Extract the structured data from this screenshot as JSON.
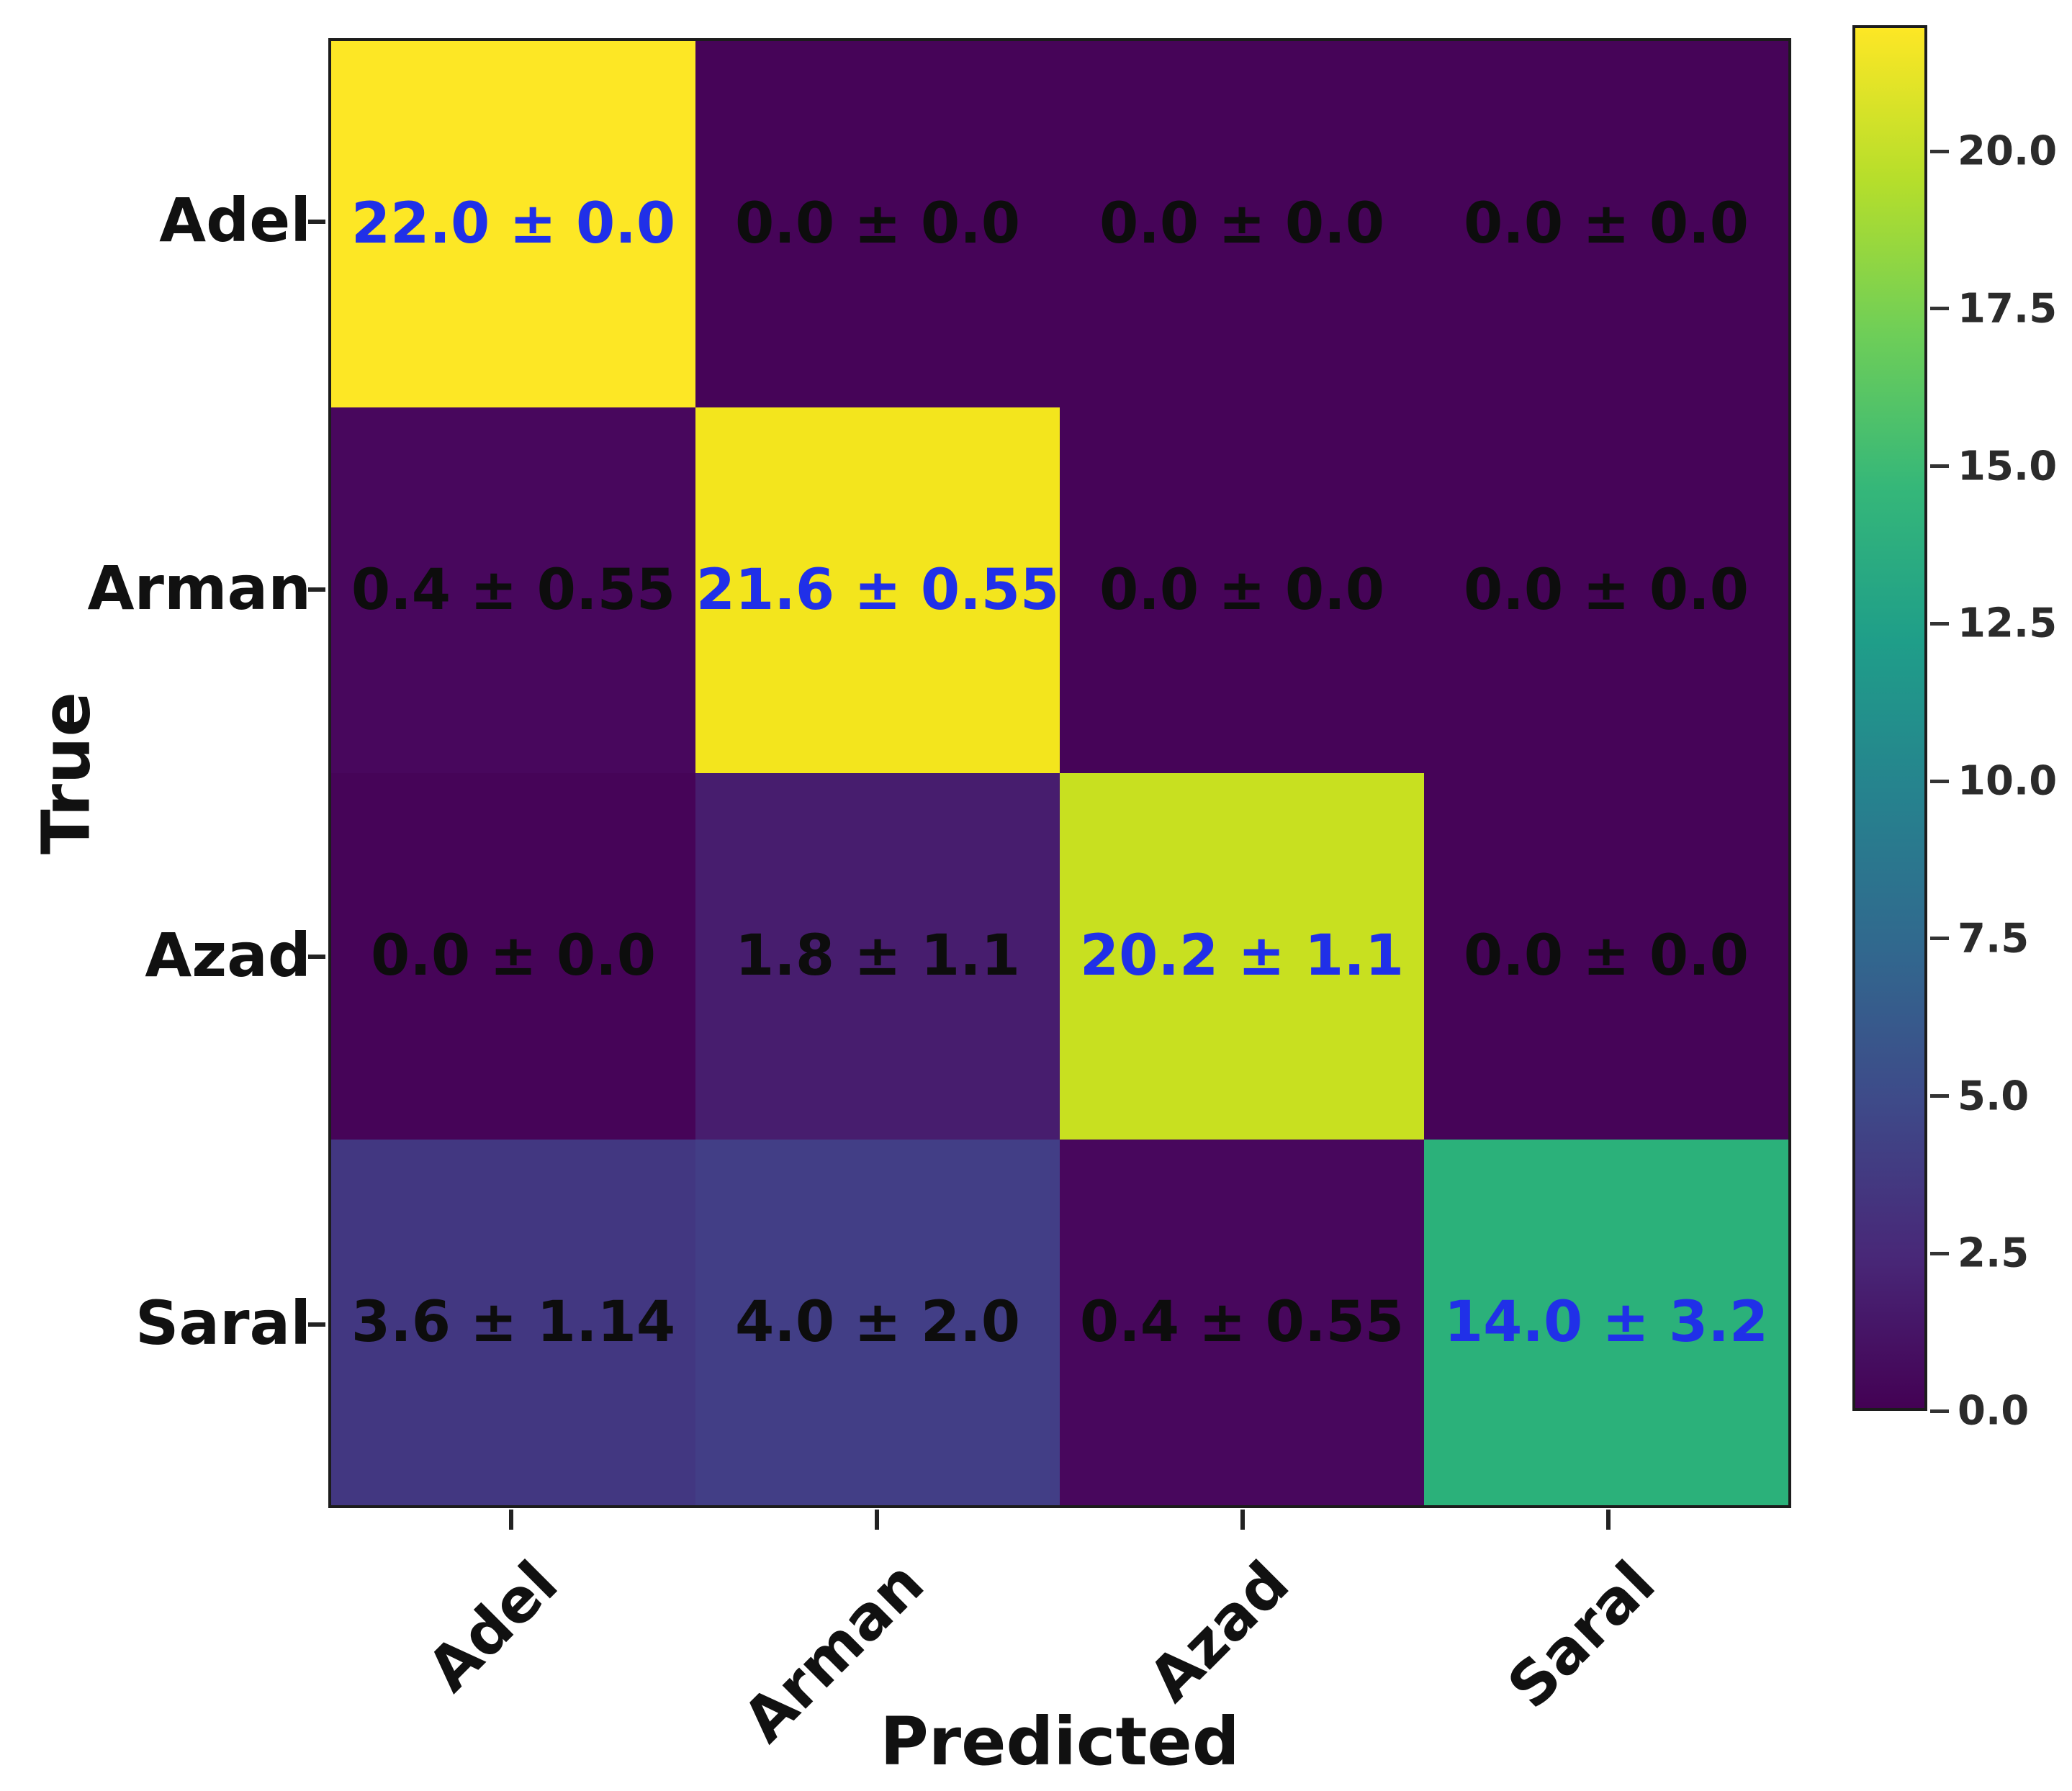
{
  "figure_type": "confusion-matrix-heatmap",
  "colors": {
    "diagonal_text": "#2030e8",
    "offdiagonal_text": "#0d0d0d",
    "axis_text": "#111111",
    "border": "#1c1c1c",
    "background": "#ffffff"
  },
  "chart_data": {
    "type": "heatmap",
    "title": "",
    "xlabel": "Predicted",
    "ylabel": "True",
    "x_categories": [
      "Adel",
      "Arman",
      "Azad",
      "Saral"
    ],
    "y_categories": [
      "Adel",
      "Arman",
      "Azad",
      "Saral"
    ],
    "colormap": "viridis",
    "vmin": 0.0,
    "vmax": 22.0,
    "legend_position": "right-colorbar",
    "grid": false,
    "colormap_stops": [
      "#fde725",
      "#b5de2b",
      "#6ece58",
      "#35b779",
      "#1f9e89",
      "#26828e",
      "#31688e",
      "#3e4a89",
      "#482878",
      "#440154"
    ],
    "colorbar_ticks": [
      {
        "value": 20.0,
        "label": "20.0"
      },
      {
        "value": 17.5,
        "label": "17.5"
      },
      {
        "value": 15.0,
        "label": "15.0"
      },
      {
        "value": 12.5,
        "label": "12.5"
      },
      {
        "value": 10.0,
        "label": "10.0"
      },
      {
        "value": 7.5,
        "label": "7.5"
      },
      {
        "value": 5.0,
        "label": "5.0"
      },
      {
        "value": 2.5,
        "label": "2.5"
      },
      {
        "value": 0.0,
        "label": "0.0"
      }
    ],
    "cells": [
      [
        {
          "mean": 22.0,
          "std": 0.0,
          "label": "22.0 ± 0.0",
          "bg": "#fde725",
          "diagonal": true
        },
        {
          "mean": 0.0,
          "std": 0.0,
          "label": "0.0 ± 0.0",
          "bg": "#460458",
          "diagonal": false
        },
        {
          "mean": 0.0,
          "std": 0.0,
          "label": "0.0 ± 0.0",
          "bg": "#460458",
          "diagonal": false
        },
        {
          "mean": 0.0,
          "std": 0.0,
          "label": "0.0 ± 0.0",
          "bg": "#460458",
          "diagonal": false
        }
      ],
      [
        {
          "mean": 0.4,
          "std": 0.55,
          "label": "0.4 ± 0.55",
          "bg": "#48075d",
          "diagonal": false
        },
        {
          "mean": 21.6,
          "std": 0.55,
          "label": "21.6 ± 0.55",
          "bg": "#f3e51d",
          "diagonal": true
        },
        {
          "mean": 0.0,
          "std": 0.0,
          "label": "0.0 ± 0.0",
          "bg": "#460458",
          "diagonal": false
        },
        {
          "mean": 0.0,
          "std": 0.0,
          "label": "0.0 ± 0.0",
          "bg": "#460458",
          "diagonal": false
        }
      ],
      [
        {
          "mean": 0.0,
          "std": 0.0,
          "label": "0.0 ± 0.0",
          "bg": "#460458",
          "diagonal": false
        },
        {
          "mean": 1.8,
          "std": 1.1,
          "label": "1.8 ± 1.1",
          "bg": "#471d6e",
          "diagonal": false
        },
        {
          "mean": 20.2,
          "std": 1.1,
          "label": "20.2 ± 1.1",
          "bg": "#c8e020",
          "diagonal": true
        },
        {
          "mean": 0.0,
          "std": 0.0,
          "label": "0.0 ± 0.0",
          "bg": "#460458",
          "diagonal": false
        }
      ],
      [
        {
          "mean": 3.6,
          "std": 1.14,
          "label": "3.6 ± 1.14",
          "bg": "#423781",
          "diagonal": false
        },
        {
          "mean": 4.0,
          "std": 2.0,
          "label": "4.0 ± 2.0",
          "bg": "#423e86",
          "diagonal": false
        },
        {
          "mean": 0.4,
          "std": 0.55,
          "label": "0.4 ± 0.55",
          "bg": "#48075d",
          "diagonal": false
        },
        {
          "mean": 14.0,
          "std": 3.2,
          "label": "14.0 ± 3.2",
          "bg": "#2bb17a",
          "diagonal": true
        }
      ]
    ]
  }
}
